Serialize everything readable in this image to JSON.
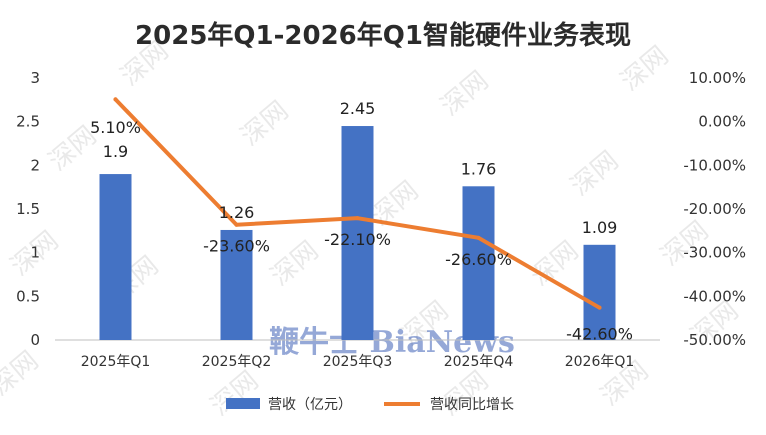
{
  "chart_data": {
    "type": "bar",
    "title": "2025年Q1-2026年Q1智能硬件业务表现",
    "categories": [
      "2025年Q1",
      "2025年Q2",
      "2025年Q3",
      "2025年Q4",
      "2026年Q1"
    ],
    "series": [
      {
        "name": "营收（亿元）",
        "type": "bar",
        "axis": "left",
        "values": [
          1.9,
          1.26,
          2.45,
          1.76,
          1.09
        ],
        "labels": [
          "1.9",
          "1.26",
          "2.45",
          "1.76",
          "1.09"
        ],
        "color": "#4472c4"
      },
      {
        "name": "营收同比增长",
        "type": "line",
        "axis": "right",
        "values": [
          5.1,
          -23.6,
          -22.1,
          -26.6,
          -42.6
        ],
        "labels": [
          "5.10%",
          "-23.60%",
          "-22.10%",
          "-26.60%",
          "-42.60%"
        ],
        "color": "#ed7d31"
      }
    ],
    "y_left": {
      "ylim": [
        0,
        3
      ],
      "ticks": [
        0,
        0.5,
        1,
        1.5,
        2,
        2.5,
        3
      ],
      "tick_labels": [
        "0",
        "0.5",
        "1",
        "1.5",
        "2",
        "2.5",
        "3"
      ]
    },
    "y_right": {
      "ylim": [
        -50,
        10
      ],
      "ticks": [
        10,
        0,
        -10,
        -20,
        -30,
        -40,
        -50
      ],
      "tick_labels": [
        "10.00%",
        "0.00%",
        "-10.00%",
        "-20.00%",
        "-30.00%",
        "-40.00%",
        "-50.00%"
      ]
    },
    "grid": false,
    "legend_position": "bottom"
  },
  "watermark": {
    "text": "深网",
    "brand": "鞭牛士 BiaNews"
  }
}
